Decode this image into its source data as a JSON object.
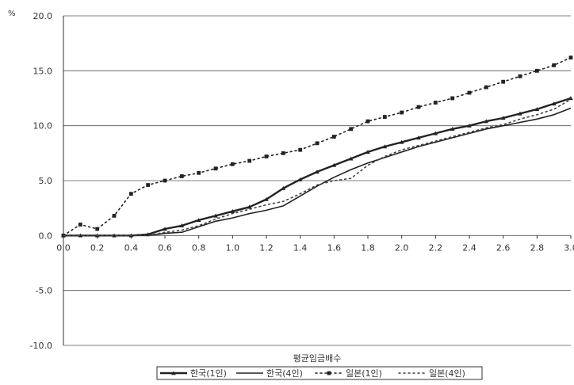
{
  "chart_data": {
    "type": "line",
    "unit_label": "%",
    "xlabel": "평균임금배수",
    "ylabel": "",
    "xlim": [
      0.0,
      3.0
    ],
    "ylim": [
      -10.0,
      20.0
    ],
    "x_ticks": [
      "0.0",
      "0.2",
      "0.4",
      "0.6",
      "0.8",
      "1.0",
      "1.2",
      "1.4",
      "1.6",
      "1.8",
      "2.0",
      "2.2",
      "2.4",
      "2.6",
      "2.8",
      "3.0"
    ],
    "y_ticks": [
      "20.0",
      "15.0",
      "10.0",
      "5.0",
      "0.0",
      "-5.0",
      "-10.0"
    ],
    "grid": true,
    "legend_position": "bottom",
    "x": [
      0.0,
      0.1,
      0.2,
      0.3,
      0.4,
      0.5,
      0.6,
      0.7,
      0.8,
      0.9,
      1.0,
      1.1,
      1.2,
      1.3,
      1.4,
      1.5,
      1.6,
      1.7,
      1.8,
      1.9,
      2.0,
      2.1,
      2.2,
      2.3,
      2.4,
      2.5,
      2.6,
      2.7,
      2.8,
      2.9,
      3.0
    ],
    "series": [
      {
        "name": "한국(1인)",
        "style": "solid-marker",
        "color": "#222222",
        "values": [
          0.0,
          0.0,
          0.0,
          0.0,
          0.0,
          0.1,
          0.6,
          0.9,
          1.4,
          1.8,
          2.2,
          2.6,
          3.3,
          4.3,
          5.1,
          5.8,
          6.4,
          7.0,
          7.6,
          8.1,
          8.5,
          8.9,
          9.3,
          9.7,
          10.0,
          10.4,
          10.7,
          11.1,
          11.5,
          12.0,
          12.5
        ]
      },
      {
        "name": "한국(4인)",
        "style": "solid",
        "color": "#222222",
        "values": [
          0.0,
          0.0,
          0.0,
          0.0,
          0.0,
          0.0,
          0.2,
          0.3,
          0.8,
          1.3,
          1.6,
          2.0,
          2.3,
          2.7,
          3.6,
          4.5,
          5.3,
          6.0,
          6.6,
          7.1,
          7.6,
          8.1,
          8.5,
          8.9,
          9.3,
          9.7,
          10.0,
          10.3,
          10.6,
          11.0,
          11.6
        ]
      },
      {
        "name": "일본(1인)",
        "style": "dotted-marker",
        "color": "#222222",
        "values": [
          0.0,
          1.0,
          0.6,
          1.8,
          3.8,
          4.6,
          5.0,
          5.4,
          5.7,
          6.1,
          6.5,
          6.8,
          7.2,
          7.5,
          7.8,
          8.4,
          9.0,
          9.7,
          10.4,
          10.8,
          11.2,
          11.7,
          12.1,
          12.5,
          13.0,
          13.5,
          14.0,
          14.5,
          15.0,
          15.5,
          16.2
        ]
      },
      {
        "name": "일본(4인)",
        "style": "dotted",
        "color": "#444444",
        "values": [
          0.0,
          0.0,
          0.0,
          0.0,
          0.0,
          0.0,
          0.3,
          0.5,
          0.9,
          1.5,
          2.0,
          2.4,
          2.8,
          3.1,
          3.8,
          4.6,
          5.0,
          5.2,
          6.4,
          7.2,
          7.8,
          8.2,
          8.6,
          9.0,
          9.4,
          9.8,
          10.1,
          10.6,
          11.0,
          11.5,
          12.4
        ]
      }
    ]
  }
}
